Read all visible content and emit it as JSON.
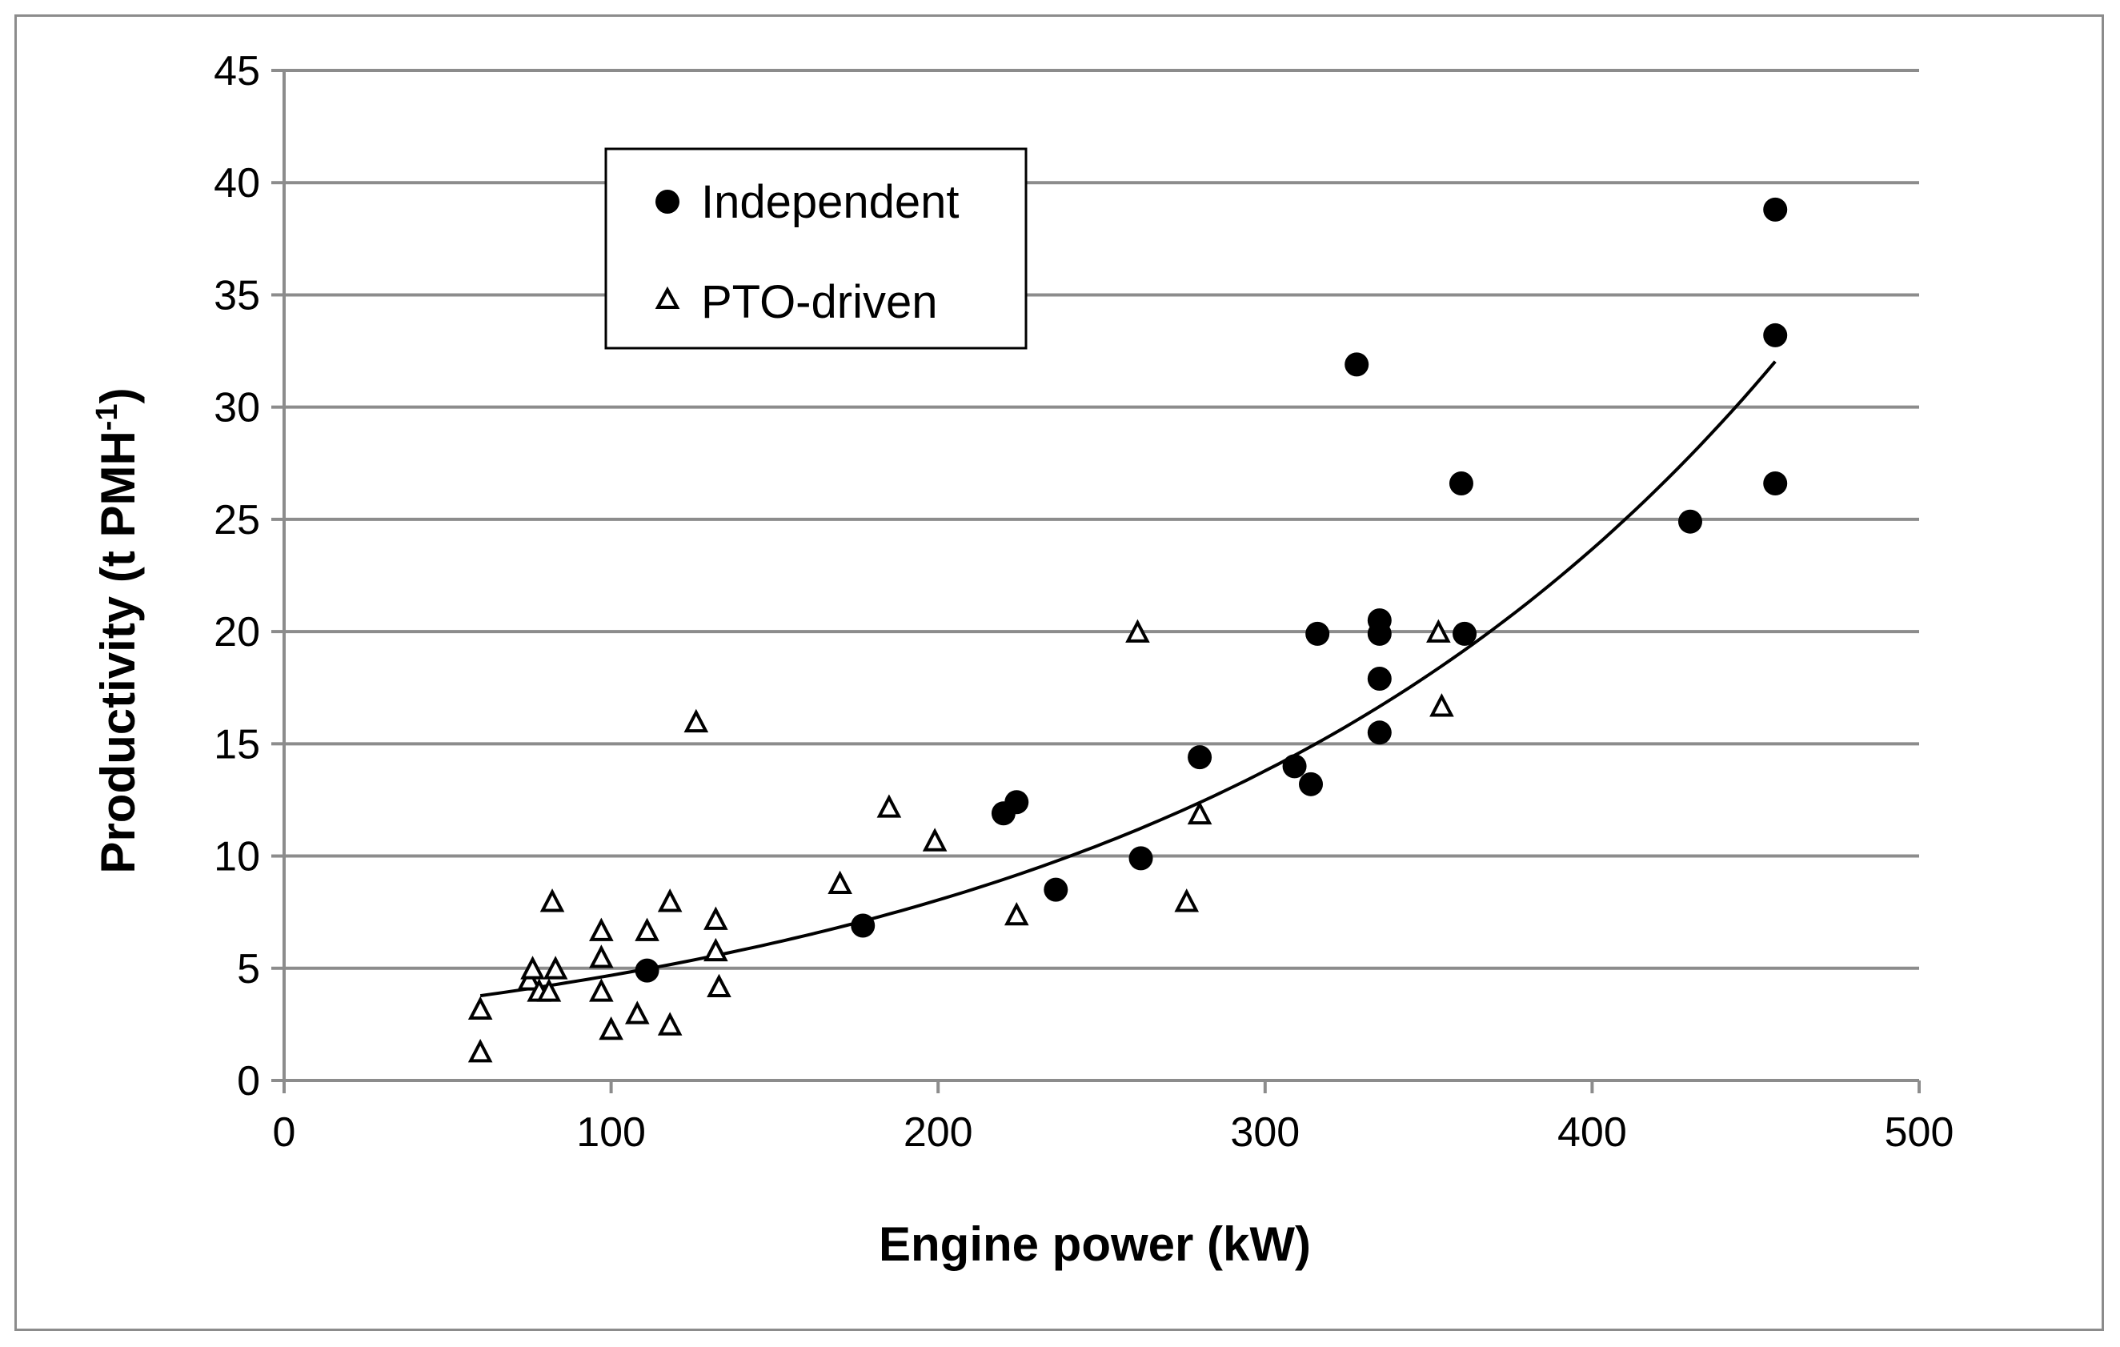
{
  "chart_data": {
    "type": "scatter",
    "title": "",
    "xlabel": "Engine power (kW)",
    "ylabel_main": "Productivity (t PMH",
    "ylabel_sup": "-1",
    "ylabel_close": ")",
    "xlim": [
      0,
      500
    ],
    "ylim": [
      0,
      45
    ],
    "x_ticks": [
      0,
      100,
      200,
      300,
      400,
      500
    ],
    "y_ticks": [
      0,
      5,
      10,
      15,
      20,
      25,
      30,
      35,
      40,
      45
    ],
    "grid": "horizontal",
    "legend_position": "top-left",
    "series": [
      {
        "name": "Independent",
        "marker": "filled-circle",
        "color": "#000000",
        "points": [
          [
            111,
            4.9
          ],
          [
            177,
            6.9
          ],
          [
            220,
            11.9
          ],
          [
            224,
            12.4
          ],
          [
            236,
            8.5
          ],
          [
            262,
            9.9
          ],
          [
            280,
            14.4
          ],
          [
            309,
            14.0
          ],
          [
            314,
            13.2
          ],
          [
            316,
            19.9
          ],
          [
            328,
            31.9
          ],
          [
            335,
            20.5
          ],
          [
            335,
            19.9
          ],
          [
            335,
            17.9
          ],
          [
            335,
            15.5
          ],
          [
            360,
            26.6
          ],
          [
            361,
            19.9
          ],
          [
            430,
            24.9
          ],
          [
            456,
            38.8
          ],
          [
            456,
            33.2
          ],
          [
            456,
            26.6
          ]
        ]
      },
      {
        "name": "PTO-driven",
        "marker": "open-triangle",
        "color": "#000000",
        "points": [
          [
            60,
            3.1
          ],
          [
            60,
            1.2
          ],
          [
            75,
            4.4
          ],
          [
            76,
            4.9
          ],
          [
            78,
            3.9
          ],
          [
            81,
            3.9
          ],
          [
            82,
            7.9
          ],
          [
            83,
            4.9
          ],
          [
            97,
            6.6
          ],
          [
            97,
            5.4
          ],
          [
            97,
            3.9
          ],
          [
            100,
            2.2
          ],
          [
            108,
            2.9
          ],
          [
            111,
            6.6
          ],
          [
            118,
            7.9
          ],
          [
            118,
            2.4
          ],
          [
            126,
            15.9
          ],
          [
            132,
            7.1
          ],
          [
            132,
            5.7
          ],
          [
            133,
            4.1
          ],
          [
            170,
            8.7
          ],
          [
            185,
            12.1
          ],
          [
            199,
            10.6
          ],
          [
            224,
            7.3
          ],
          [
            261,
            19.9
          ],
          [
            276,
            7.9
          ],
          [
            280,
            11.8
          ],
          [
            353,
            19.9
          ],
          [
            354,
            16.6
          ]
        ]
      }
    ],
    "trendline": {
      "type": "exponential",
      "a": 2.73,
      "b": 0.0054,
      "x_range": [
        60,
        456
      ]
    }
  },
  "colors": {
    "grid": "#8c8c8c",
    "axis": "#8c8c8c",
    "frame": "#8c8c8c",
    "marker": "#000000",
    "trendline": "#000000"
  }
}
